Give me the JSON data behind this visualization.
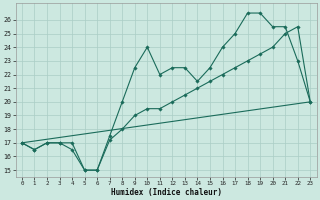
{
  "xlabel": "Humidex (Indice chaleur)",
  "bg_color": "#cce8e0",
  "grid_color": "#aacec6",
  "line_color": "#1a6b5a",
  "xlim": [
    -0.5,
    23.5
  ],
  "ylim": [
    14.5,
    27.2
  ],
  "yticks": [
    15,
    16,
    17,
    18,
    19,
    20,
    21,
    22,
    23,
    24,
    25,
    26
  ],
  "xticks": [
    0,
    1,
    2,
    3,
    4,
    5,
    6,
    7,
    8,
    9,
    10,
    11,
    12,
    13,
    14,
    15,
    16,
    17,
    18,
    19,
    20,
    21,
    22,
    23
  ],
  "line1_x": [
    0,
    1,
    2,
    3,
    4,
    5,
    6,
    7,
    8,
    9,
    10,
    11,
    12,
    13,
    14,
    15,
    16,
    17,
    18,
    19,
    20,
    21,
    22,
    23
  ],
  "line1_y": [
    17.0,
    16.5,
    17.0,
    17.0,
    16.5,
    15.0,
    15.0,
    17.5,
    20.0,
    22.5,
    24.0,
    22.0,
    22.5,
    22.5,
    21.5,
    22.5,
    24.0,
    25.0,
    26.5,
    26.5,
    25.5,
    25.5,
    23.0,
    20.0
  ],
  "line2_x": [
    0,
    1,
    2,
    3,
    4,
    5,
    6,
    7,
    8,
    9,
    10,
    11,
    12,
    13,
    14,
    15,
    16,
    17,
    18,
    19,
    20,
    21,
    22,
    23
  ],
  "line2_y": [
    17.0,
    16.5,
    17.0,
    17.0,
    17.0,
    15.0,
    15.0,
    17.2,
    18.0,
    19.0,
    19.5,
    19.5,
    20.0,
    20.5,
    21.0,
    21.5,
    22.0,
    22.5,
    23.0,
    23.5,
    24.0,
    25.0,
    25.5,
    20.0
  ],
  "line3_x": [
    0,
    23
  ],
  "line3_y": [
    17.0,
    20.0
  ]
}
